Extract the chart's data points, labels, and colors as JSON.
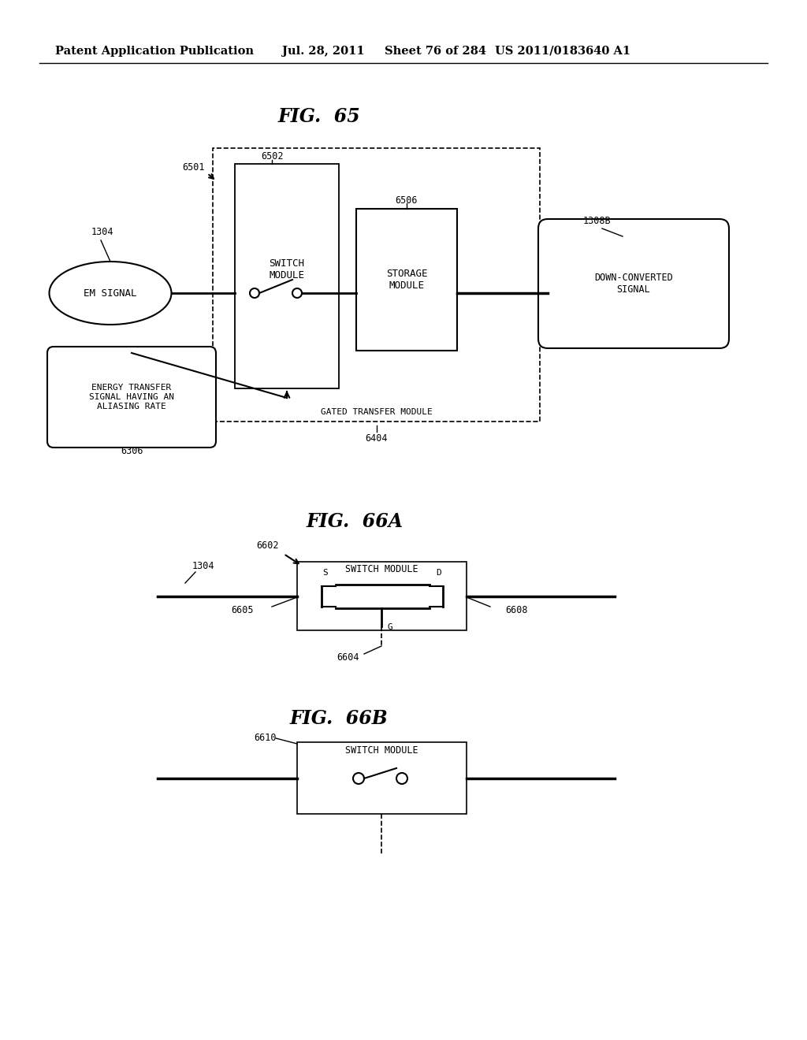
{
  "bg_color": "#ffffff",
  "header_left": "Patent Application Publication",
  "header_date": "Jul. 28, 2011",
  "header_sheet": "Sheet 76 of 284",
  "header_patent": "US 2011/0183640 A1",
  "fig65_title": "FIG.  65",
  "fig66a_title": "FIG.  66A",
  "fig66b_title": "FIG.  66B",
  "label_6501": "6501",
  "label_6502": "6502",
  "label_6506": "6506",
  "label_6404": "6404",
  "label_1304": "1304",
  "label_1308B": "1308B",
  "label_6306": "6306",
  "label_6602": "6602",
  "label_6604": "6604",
  "label_6605": "6605",
  "label_6608": "6608",
  "label_6610": "6610",
  "em_signal": "EM SIGNAL",
  "switch_module": "SWITCH\nMODULE",
  "storage_module": "STORAGE\nMODULE",
  "down_converted": "DOWN-CONVERTED\nSIGNAL",
  "energy_transfer": "ENERGY TRANSFER\nSIGNAL HAVING AN\nALIASING RATE",
  "gated_transfer": "GATED TRANSFER MODULE",
  "switch_module_label": "SWITCH MODULE"
}
